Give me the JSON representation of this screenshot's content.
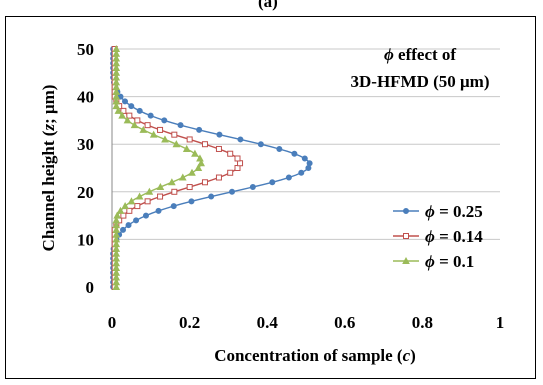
{
  "panel_label": "(a)",
  "chart_data": {
    "type": "line",
    "annotation": {
      "symbol": "ϕ",
      "line1": " effect of",
      "line2_main": "3D-HFMD (50 ",
      "line2_unit": "μm)"
    },
    "xlabel": {
      "main": "Concentration of sample (",
      "var": "c",
      "tail": ")"
    },
    "ylabel": {
      "main": "Channel height (",
      "var": "z",
      "tail": "; μm)"
    },
    "xlim": [
      0,
      1
    ],
    "ylim": [
      0,
      50
    ],
    "x_ticks": [
      "0",
      "0.2",
      "0.4",
      "0.6",
      "0.8",
      "1"
    ],
    "y_ticks": [
      "0",
      "10",
      "20",
      "30",
      "40",
      "50"
    ],
    "grid": "horizontal",
    "legend_position": "right",
    "series": [
      {
        "name": "ϕ = 0.25",
        "symbol": "ϕ",
        "value_text": " = 0.25",
        "color": "#4a7ebb",
        "marker": "circle",
        "peak": 0.51,
        "center": 25.7,
        "sigma": 5.7,
        "floor_z": [
          10.5,
          41
        ]
      },
      {
        "name": "ϕ = 0.14",
        "symbol": "ϕ",
        "value_text": " = 0.14",
        "color": "#c0504d",
        "marker": "square-open",
        "peak": 0.33,
        "center": 26.0,
        "sigma": 5.0,
        "floor_z": [
          12,
          40
        ]
      },
      {
        "name": "ϕ = 0.1",
        "symbol": "ϕ",
        "value_text": " = 0.1",
        "color": "#9bbb59",
        "marker": "triangle",
        "peak": 0.23,
        "center": 26.2,
        "sigma": 4.7,
        "floor_z": [
          12.5,
          39
        ]
      }
    ]
  }
}
